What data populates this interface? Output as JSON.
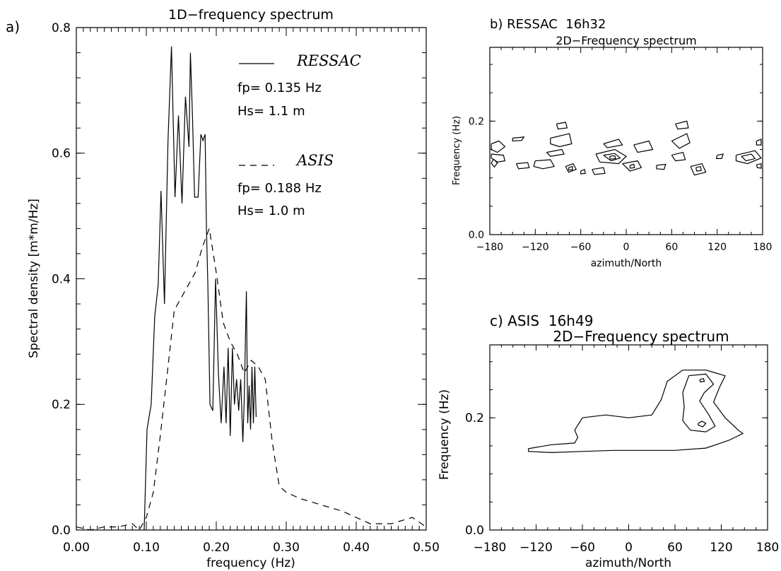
{
  "chart_data": [
    {
      "id": "a",
      "type": "line",
      "panel_label": "a)",
      "title": "1D−frequency spectrum",
      "xlabel": "frequency (Hz)",
      "ylabel": "Spectral density  [m*m/Hz]",
      "xlim": [
        0,
        0.5
      ],
      "ylim": [
        0,
        0.8
      ],
      "xticks": [
        0.0,
        0.1,
        0.2,
        0.3,
        0.4,
        0.5
      ],
      "xtick_labels": [
        "0.00",
        "0.10",
        "0.20",
        "0.30",
        "0.40",
        "0.50"
      ],
      "yticks": [
        0.0,
        0.2,
        0.4,
        0.6,
        0.8
      ],
      "ytick_labels": [
        "0.0",
        "0.2",
        "0.4",
        "0.6",
        "0.8"
      ],
      "series": [
        {
          "name": "RESSAC",
          "style": "solid",
          "x": [
            0.097,
            0.101,
            0.107,
            0.112,
            0.117,
            0.121,
            0.126,
            0.131,
            0.136,
            0.141,
            0.146,
            0.151,
            0.156,
            0.161,
            0.163,
            0.166,
            0.169,
            0.174,
            0.178,
            0.181,
            0.184,
            0.186,
            0.188,
            0.191,
            0.195,
            0.199,
            0.203,
            0.207,
            0.211,
            0.214,
            0.217,
            0.22,
            0.223,
            0.226,
            0.229,
            0.232,
            0.235,
            0.238,
            0.24,
            0.243,
            0.245,
            0.247,
            0.249,
            0.251,
            0.253,
            0.255,
            0.257
          ],
          "y": [
            0.0,
            0.16,
            0.2,
            0.34,
            0.39,
            0.54,
            0.36,
            0.62,
            0.77,
            0.53,
            0.66,
            0.52,
            0.69,
            0.61,
            0.76,
            0.66,
            0.53,
            0.53,
            0.63,
            0.62,
            0.63,
            0.48,
            0.39,
            0.2,
            0.19,
            0.4,
            0.25,
            0.17,
            0.26,
            0.17,
            0.29,
            0.15,
            0.29,
            0.2,
            0.24,
            0.19,
            0.24,
            0.14,
            0.21,
            0.38,
            0.17,
            0.23,
            0.16,
            0.26,
            0.17,
            0.26,
            0.18
          ]
        },
        {
          "name": "ASIS",
          "style": "dashed",
          "x": [
            0.0,
            0.02,
            0.04,
            0.06,
            0.08,
            0.09,
            0.1,
            0.11,
            0.12,
            0.13,
            0.14,
            0.15,
            0.16,
            0.17,
            0.18,
            0.19,
            0.2,
            0.21,
            0.22,
            0.23,
            0.24,
            0.25,
            0.26,
            0.27,
            0.28,
            0.29,
            0.3,
            0.32,
            0.35,
            0.38,
            0.42,
            0.45,
            0.48,
            0.5
          ],
          "y": [
            0.005,
            0.0,
            0.005,
            0.005,
            0.01,
            0.0,
            0.02,
            0.06,
            0.15,
            0.25,
            0.35,
            0.37,
            0.39,
            0.41,
            0.45,
            0.48,
            0.41,
            0.33,
            0.3,
            0.28,
            0.25,
            0.27,
            0.26,
            0.24,
            0.14,
            0.07,
            0.06,
            0.05,
            0.04,
            0.03,
            0.01,
            0.01,
            0.02,
            0.005
          ]
        }
      ],
      "annotations": {
        "ressac_name": "RESSAC",
        "ressac_fp": "fp= 0.135 Hz",
        "ressac_hs": "Hs= 1.1 m",
        "asis_name": "ASIS",
        "asis_fp": "fp= 0.188 Hz",
        "asis_hs": "Hs= 1.0 m"
      }
    },
    {
      "id": "b",
      "type": "contour",
      "panel_label": "b) RESSAC  16h32",
      "title": "2D−Frequency spectrum",
      "xlabel": "azimuth/North",
      "ylabel": "Frequency (Hz)",
      "xlim": [
        -180,
        180
      ],
      "ylim": [
        0,
        0.33
      ],
      "xticks": [
        -180,
        -120,
        -60,
        0,
        60,
        120,
        180
      ],
      "xtick_labels": [
        "−180",
        "−120",
        "−60",
        "0",
        "60",
        "120",
        "180"
      ],
      "yticks": [
        0.0,
        0.2
      ],
      "ytick_labels": [
        "0.0",
        "0.2"
      ],
      "contours": [
        [
          [
            -175,
            0.133
          ],
          [
            -170,
            0.126
          ],
          [
            -174,
            0.119
          ],
          [
            -178,
            0.126
          ],
          [
            -175,
            0.133
          ]
        ],
        [
          [
            -178,
            0.16
          ],
          [
            -168,
            0.165
          ],
          [
            -160,
            0.155
          ],
          [
            -170,
            0.145
          ],
          [
            -178,
            0.15
          ],
          [
            -178,
            0.16
          ]
        ],
        [
          [
            -178,
            0.142
          ],
          [
            -162,
            0.14
          ],
          [
            -160,
            0.13
          ],
          [
            -170,
            0.128
          ],
          [
            -178,
            0.135
          ],
          [
            -178,
            0.142
          ]
        ],
        [
          [
            -150,
            0.17
          ],
          [
            -135,
            0.172
          ],
          [
            -138,
            0.166
          ],
          [
            -150,
            0.165
          ],
          [
            -150,
            0.17
          ]
        ],
        [
          [
            -120,
            0.13
          ],
          [
            -100,
            0.132
          ],
          [
            -95,
            0.12
          ],
          [
            -110,
            0.116
          ],
          [
            -122,
            0.12
          ],
          [
            -120,
            0.13
          ]
        ],
        [
          [
            -145,
            0.125
          ],
          [
            -130,
            0.127
          ],
          [
            -128,
            0.118
          ],
          [
            -142,
            0.116
          ],
          [
            -145,
            0.125
          ]
        ],
        [
          [
            -105,
            0.145
          ],
          [
            -85,
            0.15
          ],
          [
            -82,
            0.142
          ],
          [
            -100,
            0.138
          ],
          [
            -105,
            0.145
          ]
        ],
        [
          [
            -100,
            0.17
          ],
          [
            -75,
            0.178
          ],
          [
            -72,
            0.16
          ],
          [
            -88,
            0.155
          ],
          [
            -100,
            0.16
          ],
          [
            -100,
            0.17
          ]
        ],
        [
          [
            -92,
            0.195
          ],
          [
            -80,
            0.198
          ],
          [
            -78,
            0.188
          ],
          [
            -90,
            0.186
          ],
          [
            -92,
            0.195
          ]
        ],
        [
          [
            -80,
            0.12
          ],
          [
            -70,
            0.125
          ],
          [
            -66,
            0.115
          ],
          [
            -76,
            0.11
          ],
          [
            -80,
            0.12
          ]
        ],
        [
          [
            -76,
            0.118
          ],
          [
            -71,
            0.12
          ],
          [
            -71,
            0.114
          ],
          [
            -76,
            0.114
          ],
          [
            -76,
            0.118
          ]
        ],
        [
          [
            -60,
            0.112
          ],
          [
            -55,
            0.115
          ],
          [
            -54,
            0.108
          ],
          [
            -60,
            0.107
          ],
          [
            -60,
            0.112
          ]
        ],
        [
          [
            -40,
            0.142
          ],
          [
            -15,
            0.15
          ],
          [
            0,
            0.138
          ],
          [
            -10,
            0.125
          ],
          [
            -35,
            0.128
          ],
          [
            -40,
            0.142
          ]
        ],
        [
          [
            -30,
            0.14
          ],
          [
            -15,
            0.143
          ],
          [
            -8,
            0.135
          ],
          [
            -20,
            0.13
          ],
          [
            -30,
            0.14
          ]
        ],
        [
          [
            -22,
            0.138
          ],
          [
            -15,
            0.139
          ],
          [
            -14,
            0.134
          ],
          [
            -21,
            0.133
          ],
          [
            -22,
            0.138
          ]
        ],
        [
          [
            -30,
            0.16
          ],
          [
            -10,
            0.168
          ],
          [
            -5,
            0.158
          ],
          [
            -25,
            0.153
          ],
          [
            -30,
            0.16
          ]
        ],
        [
          [
            -5,
            0.125
          ],
          [
            15,
            0.13
          ],
          [
            20,
            0.118
          ],
          [
            5,
            0.112
          ],
          [
            -5,
            0.125
          ]
        ],
        [
          [
            5,
            0.122
          ],
          [
            10,
            0.124
          ],
          [
            11,
            0.118
          ],
          [
            5,
            0.117
          ],
          [
            5,
            0.122
          ]
        ],
        [
          [
            10,
            0.158
          ],
          [
            30,
            0.165
          ],
          [
            35,
            0.15
          ],
          [
            15,
            0.145
          ],
          [
            10,
            0.158
          ]
        ],
        [
          [
            -45,
            0.115
          ],
          [
            -30,
            0.118
          ],
          [
            -28,
            0.108
          ],
          [
            -42,
            0.106
          ],
          [
            -45,
            0.115
          ]
        ],
        [
          [
            40,
            0.122
          ],
          [
            52,
            0.124
          ],
          [
            50,
            0.115
          ],
          [
            40,
            0.116
          ],
          [
            40,
            0.122
          ]
        ],
        [
          [
            60,
            0.14
          ],
          [
            75,
            0.145
          ],
          [
            78,
            0.132
          ],
          [
            65,
            0.13
          ],
          [
            60,
            0.14
          ]
        ],
        [
          [
            60,
            0.165
          ],
          [
            80,
            0.178
          ],
          [
            84,
            0.162
          ],
          [
            70,
            0.152
          ],
          [
            60,
            0.165
          ]
        ],
        [
          [
            65,
            0.195
          ],
          [
            80,
            0.2
          ],
          [
            82,
            0.188
          ],
          [
            68,
            0.186
          ],
          [
            65,
            0.195
          ]
        ],
        [
          [
            85,
            0.12
          ],
          [
            100,
            0.125
          ],
          [
            105,
            0.11
          ],
          [
            90,
            0.105
          ],
          [
            85,
            0.12
          ]
        ],
        [
          [
            92,
            0.118
          ],
          [
            98,
            0.12
          ],
          [
            99,
            0.113
          ],
          [
            93,
            0.112
          ],
          [
            92,
            0.118
          ]
        ],
        [
          [
            120,
            0.14
          ],
          [
            128,
            0.142
          ],
          [
            126,
            0.134
          ],
          [
            119,
            0.134
          ],
          [
            120,
            0.14
          ]
        ],
        [
          [
            145,
            0.14
          ],
          [
            170,
            0.148
          ],
          [
            178,
            0.135
          ],
          [
            160,
            0.125
          ],
          [
            145,
            0.13
          ],
          [
            145,
            0.14
          ]
        ],
        [
          [
            152,
            0.138
          ],
          [
            165,
            0.142
          ],
          [
            170,
            0.134
          ],
          [
            158,
            0.13
          ],
          [
            152,
            0.138
          ]
        ],
        [
          [
            172,
            0.165
          ],
          [
            178,
            0.168
          ],
          [
            178,
            0.158
          ],
          [
            172,
            0.158
          ],
          [
            172,
            0.165
          ]
        ],
        [
          [
            172,
            0.123
          ],
          [
            178,
            0.125
          ],
          [
            178,
            0.117
          ],
          [
            173,
            0.118
          ],
          [
            172,
            0.123
          ]
        ]
      ]
    },
    {
      "id": "c",
      "type": "contour",
      "panel_label": "c) ASIS  16h49",
      "title": "2D−Frequency spectrum",
      "xlabel": "azimuth/North",
      "ylabel": "Frequency (Hz)",
      "xlim": [
        -180,
        180
      ],
      "ylim": [
        0,
        0.33
      ],
      "xticks": [
        -180,
        -120,
        -60,
        0,
        60,
        120,
        180
      ],
      "xtick_labels": [
        "−180",
        "−120",
        "−60",
        "0",
        "60",
        "120",
        "180"
      ],
      "yticks": [
        0.0,
        0.2
      ],
      "ytick_labels": [
        "0.0",
        "0.2"
      ],
      "contours": [
        [
          [
            -130,
            0.145
          ],
          [
            -100,
            0.152
          ],
          [
            -70,
            0.155
          ],
          [
            -66,
            0.165
          ],
          [
            -70,
            0.178
          ],
          [
            -60,
            0.2
          ],
          [
            -30,
            0.205
          ],
          [
            0,
            0.2
          ],
          [
            30,
            0.205
          ],
          [
            42,
            0.232
          ],
          [
            50,
            0.265
          ],
          [
            70,
            0.285
          ],
          [
            100,
            0.285
          ],
          [
            125,
            0.275
          ],
          [
            118,
            0.255
          ],
          [
            110,
            0.228
          ],
          [
            125,
            0.2
          ],
          [
            142,
            0.178
          ],
          [
            148,
            0.172
          ],
          [
            130,
            0.16
          ],
          [
            100,
            0.146
          ],
          [
            60,
            0.142
          ],
          [
            20,
            0.142
          ],
          [
            -20,
            0.142
          ],
          [
            -60,
            0.14
          ],
          [
            -100,
            0.138
          ],
          [
            -130,
            0.14
          ],
          [
            -130,
            0.145
          ]
        ],
        [
          [
            70,
            0.245
          ],
          [
            78,
            0.275
          ],
          [
            100,
            0.278
          ],
          [
            110,
            0.26
          ],
          [
            98,
            0.245
          ],
          [
            92,
            0.23
          ],
          [
            104,
            0.205
          ],
          [
            112,
            0.185
          ],
          [
            100,
            0.175
          ],
          [
            80,
            0.178
          ],
          [
            70,
            0.195
          ],
          [
            72,
            0.22
          ],
          [
            70,
            0.245
          ]
        ],
        [
          [
            90,
            0.19
          ],
          [
            95,
            0.194
          ],
          [
            100,
            0.19
          ],
          [
            96,
            0.184
          ],
          [
            90,
            0.187
          ],
          [
            90,
            0.19
          ]
        ],
        [
          [
            92,
            0.268
          ],
          [
            97,
            0.27
          ],
          [
            98,
            0.265
          ],
          [
            93,
            0.264
          ],
          [
            92,
            0.268
          ]
        ]
      ]
    }
  ]
}
